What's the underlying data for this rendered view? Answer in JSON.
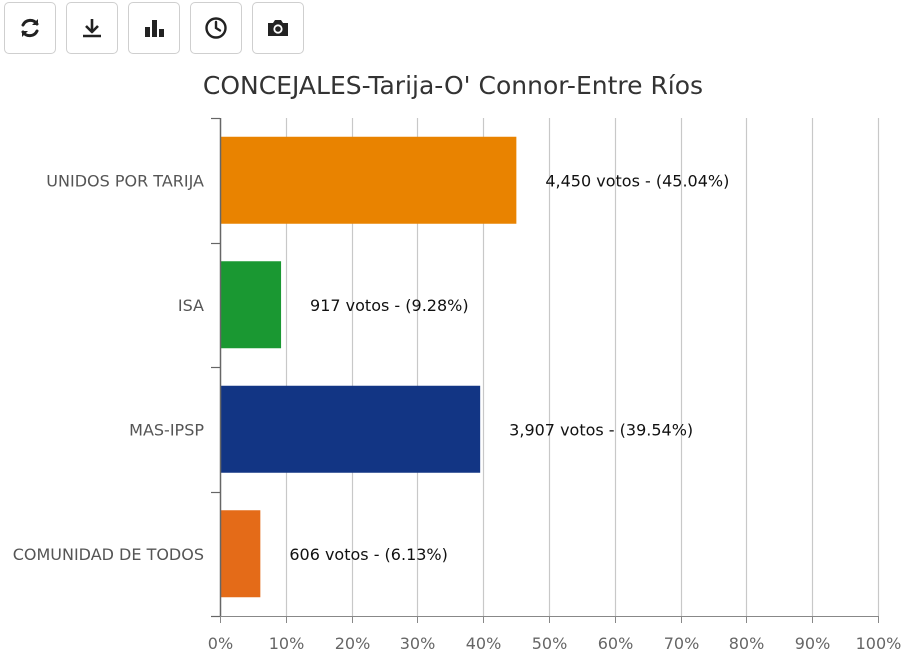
{
  "toolbar": {
    "buttons": [
      {
        "name": "refresh-button",
        "icon": "refresh-icon"
      },
      {
        "name": "download-button",
        "icon": "download-icon"
      },
      {
        "name": "bar-chart-button",
        "icon": "bar-chart-icon"
      },
      {
        "name": "history-button",
        "icon": "clock-icon"
      },
      {
        "name": "screenshot-button",
        "icon": "camera-icon"
      }
    ]
  },
  "chart_data": {
    "type": "bar",
    "orientation": "horizontal",
    "title": "CONCEJALES-Tarija-O' Connor-Entre Ríos",
    "categories": [
      "UNIDOS POR TARIJA",
      "ISA",
      "MAS-IPSP",
      "COMUNIDAD DE TODOS"
    ],
    "values": [
      45.04,
      9.28,
      39.54,
      6.13
    ],
    "data_labels": [
      "4,450 votos - (45.04%)",
      "917 votos - (9.28%)",
      "3,907 votos - (39.54%)",
      "606 votos - (6.13%)"
    ],
    "colors": [
      "#E98300",
      "#1A9832",
      "#123584",
      "#E46B18"
    ],
    "xlim": [
      0,
      100
    ],
    "x_ticks": [
      0,
      10,
      20,
      30,
      40,
      50,
      60,
      70,
      80,
      90,
      100
    ],
    "x_tick_labels": [
      "0%",
      "10%",
      "20%",
      "30%",
      "40%",
      "50%",
      "60%",
      "70%",
      "80%",
      "90%",
      "100%"
    ],
    "grid": true,
    "xlabel": "",
    "ylabel": "",
    "legend": "none"
  }
}
